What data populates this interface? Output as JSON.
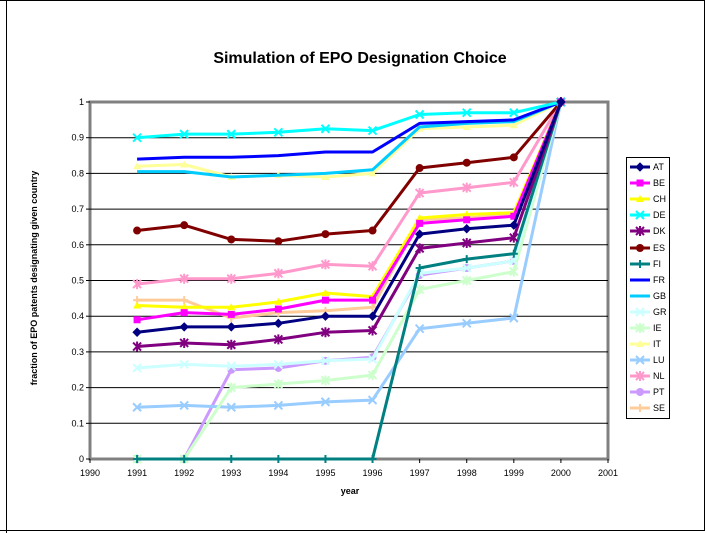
{
  "chart_data": {
    "type": "line",
    "title": "Simulation of EPO Designation Choice",
    "xlabel": "year",
    "ylabel": "fraction of EPO patents designating given country",
    "xlim": [
      1990,
      2001
    ],
    "ylim": [
      0,
      1
    ],
    "x_ticks": [
      "1990",
      "1991",
      "1992",
      "1993",
      "1994",
      "1995",
      "1996",
      "1997",
      "1998",
      "1999",
      "2000",
      "2001"
    ],
    "y_ticks": [
      "0",
      "0.1",
      "0.2",
      "0.3",
      "0.4",
      "0.5",
      "0.6",
      "0.7",
      "0.8",
      "0.9",
      "1"
    ],
    "x": [
      1991,
      1992,
      1993,
      1994,
      1995,
      1996,
      1997,
      1998,
      1999,
      2000
    ],
    "grid": "horizontal",
    "legend_position": "right",
    "series": [
      {
        "name": "AT",
        "color": "#000080",
        "marker": "diamond",
        "values": [
          0.355,
          0.37,
          0.37,
          0.38,
          0.4,
          0.4,
          0.63,
          0.645,
          0.655,
          1.0
        ]
      },
      {
        "name": "BE",
        "color": "#ff00ff",
        "marker": "square",
        "values": [
          0.39,
          0.41,
          0.405,
          0.42,
          0.445,
          0.445,
          0.66,
          0.67,
          0.68,
          1.0
        ]
      },
      {
        "name": "CH",
        "color": "#ffff00",
        "marker": "triangle",
        "values": [
          0.43,
          0.425,
          0.425,
          0.44,
          0.465,
          0.455,
          0.675,
          0.685,
          0.69,
          1.0
        ]
      },
      {
        "name": "DE",
        "color": "#00ffff",
        "marker": "x",
        "values": [
          0.9,
          0.91,
          0.91,
          0.915,
          0.925,
          0.92,
          0.965,
          0.97,
          0.97,
          1.0
        ]
      },
      {
        "name": "DK",
        "color": "#800080",
        "marker": "star",
        "values": [
          0.315,
          0.325,
          0.32,
          0.335,
          0.355,
          0.36,
          0.59,
          0.605,
          0.62,
          1.0
        ]
      },
      {
        "name": "ES",
        "color": "#800000",
        "marker": "circle",
        "values": [
          0.64,
          0.655,
          0.615,
          0.61,
          0.63,
          0.64,
          0.815,
          0.83,
          0.845,
          1.0
        ]
      },
      {
        "name": "FI",
        "color": "#008080",
        "marker": "plus",
        "values": [
          0,
          0,
          0,
          0,
          0,
          0,
          0.535,
          0.56,
          0.575,
          1.0
        ]
      },
      {
        "name": "FR",
        "color": "#0000ff",
        "marker": "none",
        "values": [
          0.84,
          0.845,
          0.845,
          0.85,
          0.86,
          0.86,
          0.94,
          0.945,
          0.95,
          1.0
        ]
      },
      {
        "name": "GB",
        "color": "#00ccff",
        "marker": "none",
        "values": [
          0.805,
          0.805,
          0.79,
          0.795,
          0.8,
          0.81,
          0.93,
          0.94,
          0.945,
          1.0
        ]
      },
      {
        "name": "GR",
        "color": "#ccffff",
        "marker": "x",
        "values": [
          0.255,
          0.265,
          0.26,
          0.265,
          0.275,
          0.28,
          0.52,
          0.535,
          0.555,
          1.0
        ]
      },
      {
        "name": "IE",
        "color": "#ccffcc",
        "marker": "star",
        "values": [
          0,
          0,
          0.2,
          0.21,
          0.22,
          0.235,
          0.475,
          0.5,
          0.525,
          1.0
        ]
      },
      {
        "name": "IT",
        "color": "#ffff99",
        "marker": "triangle",
        "values": [
          0.82,
          0.825,
          0.79,
          0.795,
          0.79,
          0.8,
          0.925,
          0.93,
          0.935,
          1.0
        ]
      },
      {
        "name": "LU",
        "color": "#99ccff",
        "marker": "x",
        "values": [
          0.145,
          0.15,
          0.145,
          0.15,
          0.16,
          0.165,
          0.365,
          0.38,
          0.395,
          1.0
        ]
      },
      {
        "name": "NL",
        "color": "#ff99cc",
        "marker": "star",
        "values": [
          0.49,
          0.505,
          0.505,
          0.52,
          0.545,
          0.54,
          0.745,
          0.76,
          0.775,
          1.0
        ]
      },
      {
        "name": "PT",
        "color": "#cc99ff",
        "marker": "circle",
        "values": [
          0,
          0,
          0.25,
          0.255,
          0.275,
          0.285,
          0.515,
          0.535,
          0.555,
          1.0
        ]
      },
      {
        "name": "SE",
        "color": "#ffcc99",
        "marker": "plus",
        "values": [
          0.445,
          0.445,
          0.395,
          0.41,
          0.415,
          0.425,
          0.67,
          0.675,
          0.685,
          1.0
        ]
      }
    ]
  }
}
